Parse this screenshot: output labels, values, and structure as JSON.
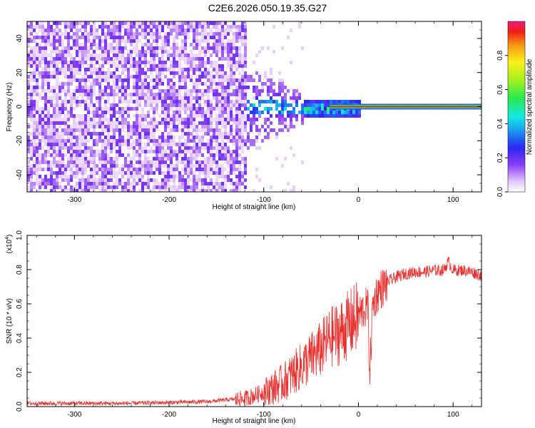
{
  "title": "C2E6.2026.050.19.35.G27",
  "chart_data": [
    {
      "type": "heatmap",
      "xlabel": "Height of straight line (km)",
      "ylabel": "Frequency (Hz)",
      "xlim": [
        -350,
        130
      ],
      "ylim": [
        -50,
        50
      ],
      "x_ticks": [
        -300,
        -200,
        -100,
        0,
        100
      ],
      "y_ticks": [
        -40,
        -20,
        0,
        20,
        40
      ],
      "colorbar": {
        "label": "Normalized spectral amplitude",
        "range": [
          0,
          1
        ],
        "ticks": [
          0.0,
          0.2,
          0.4,
          0.6,
          0.8
        ],
        "tick_labels": [
          "0.0",
          "0.2",
          "0.4",
          "0.6",
          "0.8"
        ]
      },
      "description_series": [
        {
          "name": "noise_region",
          "x_range": [
            -350,
            -120
          ],
          "freq_range": [
            -50,
            50
          ],
          "amplitude_range": [
            0.05,
            0.2
          ]
        },
        {
          "name": "signal_line",
          "x_range": [
            -120,
            130
          ],
          "freq_center": 0,
          "amplitude_range": [
            0.3,
            1.0
          ]
        }
      ]
    },
    {
      "type": "line",
      "xlabel": "Height of straight line (km)",
      "ylabel": "SNR (10 * v/v)",
      "y_scale_label": "(x10",
      "y_scale_exp": "4",
      "y_scale_close": ")",
      "xlim": [
        -350,
        130
      ],
      "ylim": [
        0,
        1.0
      ],
      "x_ticks": [
        -300,
        -200,
        -100,
        0,
        100
      ],
      "y_ticks": [
        0.0,
        0.2,
        0.4,
        0.6,
        0.8,
        1.0
      ],
      "y_tick_labels": [
        "0.0",
        "0.2",
        "0.4",
        "0.6",
        "0.8",
        "1.0"
      ],
      "series": [
        {
          "name": "SNR",
          "color": "#e8302e",
          "x": [
            -350,
            -300,
            -250,
            -200,
            -160,
            -140,
            -120,
            -110,
            -100,
            -90,
            -80,
            -70,
            -60,
            -50,
            -40,
            -30,
            -20,
            -10,
            0,
            10,
            12,
            15,
            20,
            30,
            40,
            50,
            60,
            70,
            80,
            90,
            95,
            100,
            110,
            120,
            130
          ],
          "y": [
            0.02,
            0.02,
            0.02,
            0.025,
            0.03,
            0.04,
            0.05,
            0.07,
            0.09,
            0.12,
            0.15,
            0.2,
            0.25,
            0.3,
            0.35,
            0.42,
            0.45,
            0.5,
            0.55,
            0.6,
            0.2,
            0.6,
            0.68,
            0.73,
            0.76,
            0.78,
            0.79,
            0.79,
            0.8,
            0.8,
            0.85,
            0.8,
            0.8,
            0.79,
            0.77
          ]
        }
      ]
    }
  ],
  "colors": {
    "signal": "#e8302e",
    "noise_purple": "#7b2bf0"
  }
}
